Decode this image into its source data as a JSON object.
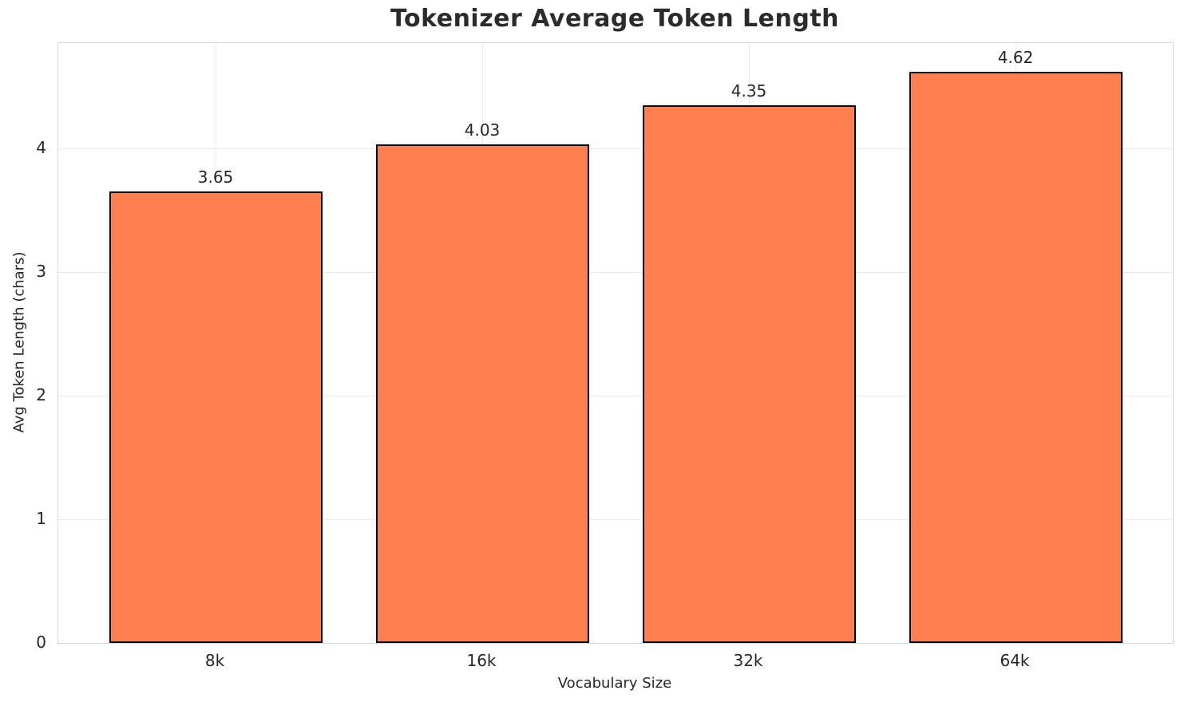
{
  "figure": {
    "title": "Tokenizer Average Token Length",
    "xlabel": "Vocabulary Size",
    "ylabel": "Avg Token Length (chars)"
  },
  "chart_data": {
    "type": "bar",
    "title": "Tokenizer Average Token Length",
    "xlabel": "Vocabulary Size",
    "ylabel": "Avg Token Length (chars)",
    "categories": [
      "8k",
      "16k",
      "32k",
      "64k"
    ],
    "values": [
      3.65,
      4.03,
      4.35,
      4.62
    ],
    "bar_labels": [
      "3.65",
      "4.03",
      "4.35",
      "4.62"
    ],
    "ylim": [
      0,
      4.85
    ],
    "yticks": [
      0,
      1,
      2,
      3,
      4
    ],
    "grid": true,
    "legend_position": "none",
    "colors": {
      "bar_fill": "#FF7F50",
      "bar_edge": "#000000",
      "grid_line": "#ebebeb",
      "spine": "#d6d6d6",
      "text": "#262626"
    }
  }
}
